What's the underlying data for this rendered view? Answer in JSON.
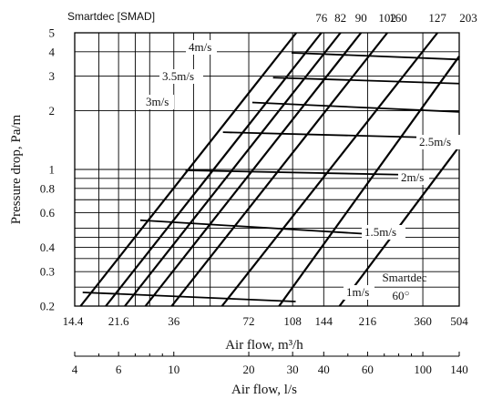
{
  "chart_data": {
    "type": "line",
    "series_label_title": "Smartdec [SMAD]",
    "top_axis_ticks": [
      "76",
      "82",
      "90",
      "102",
      "127",
      "160",
      "203"
    ],
    "top_axis_values": [
      76,
      82,
      90,
      102,
      127,
      160,
      203
    ],
    "ylabel": "Pressure drop, Pa/m",
    "y_scale": "log",
    "ylim": [
      0.2,
      5
    ],
    "y_ticks": [
      {
        "value": 0.2,
        "label": "0.2"
      },
      {
        "value": 0.3,
        "label": "0.3"
      },
      {
        "value": 0.4,
        "label": "0.4"
      },
      {
        "value": 0.6,
        "label": "0.6"
      },
      {
        "value": 0.8,
        "label": "0.8"
      },
      {
        "value": 1,
        "label": "1"
      },
      {
        "value": 2,
        "label": "2"
      },
      {
        "value": 3,
        "label": "3"
      },
      {
        "value": 4,
        "label": "4"
      },
      {
        "value": 5,
        "label": "5"
      }
    ],
    "y_gridlines": [
      0.2,
      0.25,
      0.3,
      0.35,
      0.4,
      0.45,
      0.5,
      0.6,
      0.7,
      0.8,
      0.9,
      1,
      2,
      3,
      4,
      5
    ],
    "xlabel": "Air flow, m³/h",
    "x_scale": "log",
    "xlim": [
      14.4,
      504
    ],
    "x_ticks": [
      {
        "value": 14.4,
        "label": "14.4"
      },
      {
        "value": 21.6,
        "label": "21.6"
      },
      {
        "value": 36,
        "label": "36"
      },
      {
        "value": 72,
        "label": "72"
      },
      {
        "value": 108,
        "label": "108"
      },
      {
        "value": 144,
        "label": "144"
      },
      {
        "value": 216,
        "label": "216"
      },
      {
        "value": 360,
        "label": "360"
      },
      {
        "value": 504,
        "label": "504"
      }
    ],
    "x_gridlines": [
      18,
      21.6,
      25.2,
      28.8,
      36,
      43.2,
      50.4,
      72,
      108,
      144,
      216,
      360,
      504
    ],
    "x2label": "Air flow, l/s",
    "x2_ticks": [
      {
        "value": 4,
        "label": "4"
      },
      {
        "value": 6,
        "label": "6"
      },
      {
        "value": 10,
        "label": "10"
      },
      {
        "value": 20,
        "label": "20"
      },
      {
        "value": 30,
        "label": "30"
      },
      {
        "value": 40,
        "label": "40"
      },
      {
        "value": 60,
        "label": "60"
      },
      {
        "value": 100,
        "label": "100"
      },
      {
        "value": 140,
        "label": "140"
      }
    ],
    "x2_minor_ticks": [
      5,
      7,
      8,
      9,
      50,
      70,
      80,
      90
    ],
    "diameter_lines": [
      {
        "size": 60,
        "points": [
          [
            15.2,
            0.2
          ],
          [
            111.7,
            5
          ]
        ]
      },
      {
        "size": 76,
        "points": [
          [
            19.2,
            0.2
          ],
          [
            140.9,
            5
          ]
        ]
      },
      {
        "size": 82,
        "points": [
          [
            22.9,
            0.2
          ],
          [
            168.1,
            5
          ]
        ]
      },
      {
        "size": 90,
        "points": [
          [
            27.7,
            0.2
          ],
          [
            203.3,
            5
          ]
        ]
      },
      {
        "size": 102,
        "points": [
          [
            35.3,
            0.2
          ],
          [
            259.2,
            5
          ]
        ]
      },
      {
        "size": 127,
        "points": [
          [
            56.2,
            0.2
          ],
          [
            412.2,
            5
          ]
        ]
      },
      {
        "size": 160,
        "points": [
          [
            95.3,
            0.2
          ],
          [
            504,
            3.79
          ]
        ]
      },
      {
        "size": 203,
        "points": [
          [
            166.6,
            0.2
          ],
          [
            504,
            1.31
          ]
        ]
      }
    ],
    "velocity_lines": [
      {
        "label": "1m/s",
        "points": [
          [
            15.5,
            0.235
          ],
          [
            111.1,
            0.211
          ]
        ]
      },
      {
        "label": "1.5m/s",
        "points": [
          [
            26.4,
            0.55
          ],
          [
            213.6,
            0.468
          ]
        ]
      },
      {
        "label": "2m/s",
        "points": [
          [
            40.1,
            0.99
          ],
          [
            296.2,
            0.94
          ]
        ]
      },
      {
        "label": "2.5m/s",
        "points": [
          [
            56.7,
            1.55
          ],
          [
            434.1,
            1.45
          ]
        ]
      },
      {
        "label": "3m/s",
        "points": [
          [
            74.4,
            2.2
          ],
          [
            504,
            1.97
          ]
        ]
      },
      {
        "label": "3.5m/s",
        "points": [
          [
            90.1,
            2.95
          ],
          [
            504,
            2.75
          ]
        ]
      },
      {
        "label": "4m/s",
        "points": [
          [
            107.0,
            3.95
          ],
          [
            504,
            3.65
          ]
        ]
      }
    ],
    "velocity_labels": [
      "4m/s",
      "3.5m/s",
      "3m/s",
      "2.5m/s",
      "2m/s",
      "1.5m/s",
      "1m/s"
    ],
    "annotation_line1": "Smartdec",
    "annotation_line2": "60",
    "annotation_degree": "○",
    "grid": true,
    "legend": "none"
  }
}
